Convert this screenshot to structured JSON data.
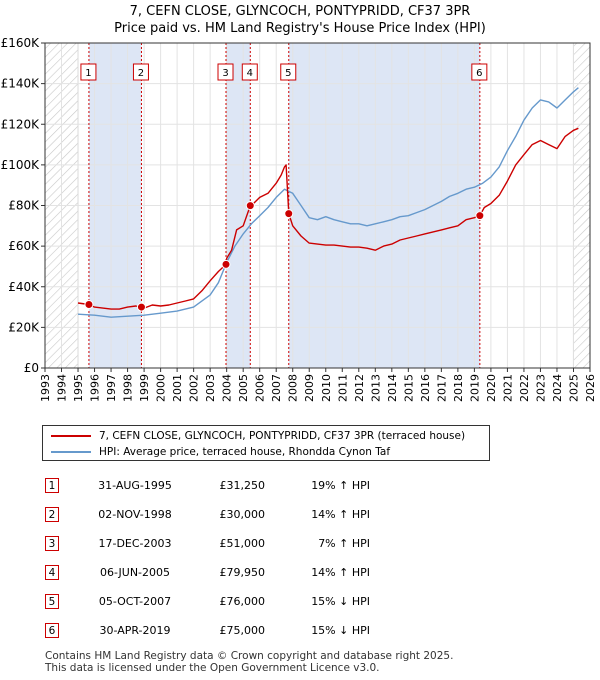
{
  "title_line1": "7, CEFN CLOSE, GLYNCOCH, PONTYPRIDD, CF37 3PR",
  "title_line2": "Price paid vs. HM Land Registry's House Price Index (HPI)",
  "legend": {
    "property": "7, CEFN CLOSE, GLYNCOCH, PONTYPRIDD, CF37 3PR (terraced house)",
    "hpi": "HPI: Average price, terraced house, Rhondda Cynon Taf"
  },
  "colors": {
    "property": "#cc0000",
    "hpi": "#6699cc",
    "shade": "#dde6f5",
    "hatch": "#bbbbbb"
  },
  "sales": [
    {
      "num": "1",
      "date": "31-AUG-1995",
      "price": "£31,250",
      "hpi": "19% ↑ HPI"
    },
    {
      "num": "2",
      "date": "02-NOV-1998",
      "price": "£30,000",
      "hpi": "14% ↑ HPI"
    },
    {
      "num": "3",
      "date": "17-DEC-2003",
      "price": "£51,000",
      "hpi": "7% ↑ HPI"
    },
    {
      "num": "4",
      "date": "06-JUN-2005",
      "price": "£79,950",
      "hpi": "14% ↑ HPI"
    },
    {
      "num": "5",
      "date": "05-OCT-2007",
      "price": "£76,000",
      "hpi": "15% ↓ HPI"
    },
    {
      "num": "6",
      "date": "30-APR-2019",
      "price": "£75,000",
      "hpi": "15% ↓ HPI"
    }
  ],
  "footer_line1": "Contains HM Land Registry data © Crown copyright and database right 2025.",
  "footer_line2": "This data is licensed under the Open Government Licence v3.0.",
  "chart_data": {
    "type": "line",
    "title": "7, CEFN CLOSE, GLYNCOCH, PONTYPRIDD, CF37 3PR - Price paid vs. HM Land Registry's House Price Index (HPI)",
    "xlabel": "",
    "ylabel": "",
    "xlim": [
      1993,
      2026
    ],
    "ylim": [
      0,
      160000
    ],
    "x_ticks": [
      1993,
      1994,
      1995,
      1996,
      1997,
      1998,
      1999,
      2000,
      2001,
      2002,
      2003,
      2004,
      2005,
      2006,
      2007,
      2008,
      2009,
      2010,
      2011,
      2012,
      2013,
      2014,
      2015,
      2016,
      2017,
      2018,
      2019,
      2020,
      2021,
      2022,
      2023,
      2024,
      2025,
      2026
    ],
    "y_ticks": [
      0,
      20000,
      40000,
      60000,
      80000,
      100000,
      120000,
      140000,
      160000
    ],
    "y_tick_labels": [
      "£0",
      "£20K",
      "£40K",
      "£60K",
      "£80K",
      "£100K",
      "£120K",
      "£140K",
      "£160K"
    ],
    "hatched_ranges": [
      [
        1993,
        1995.0
      ],
      [
        2025.0,
        2026
      ]
    ],
    "shaded_ranges": [
      [
        1995.66,
        1998.84
      ],
      [
        2003.96,
        2005.43
      ],
      [
        2007.76,
        2019.33
      ]
    ],
    "sale_points": [
      {
        "label": "1",
        "x": 1995.66,
        "y": 31250
      },
      {
        "label": "2",
        "x": 1998.84,
        "y": 30000
      },
      {
        "label": "3",
        "x": 2003.96,
        "y": 51000
      },
      {
        "label": "4",
        "x": 2005.43,
        "y": 79950
      },
      {
        "label": "5",
        "x": 2007.76,
        "y": 76000
      },
      {
        "label": "6",
        "x": 2019.33,
        "y": 75000
      }
    ],
    "series": [
      {
        "name": "7, CEFN CLOSE, GLYNCOCH, PONTYPRIDD, CF37 3PR (terraced house)",
        "x": [
          1995.0,
          1995.66,
          1996.0,
          1996.5,
          1997.0,
          1997.5,
          1998.0,
          1998.5,
          1998.84,
          1999.0,
          1999.5,
          2000.0,
          2000.5,
          2001.0,
          2001.5,
          2002.0,
          2002.5,
          2003.0,
          2003.5,
          2003.96,
          2004.0,
          2004.3,
          2004.6,
          2005.0,
          2005.43,
          2005.5,
          2006.0,
          2006.5,
          2007.0,
          2007.3,
          2007.5,
          2007.6,
          2007.76,
          2008.0,
          2008.5,
          2009.0,
          2009.5,
          2010.0,
          2010.5,
          2011.0,
          2011.5,
          2012.0,
          2012.5,
          2013.0,
          2013.5,
          2014.0,
          2014.5,
          2015.0,
          2015.5,
          2016.0,
          2016.5,
          2017.0,
          2017.5,
          2018.0,
          2018.5,
          2019.0,
          2019.33,
          2019.6,
          2020.0,
          2020.5,
          2021.0,
          2021.5,
          2022.0,
          2022.5,
          2023.0,
          2023.5,
          2024.0,
          2024.5,
          2025.0,
          2025.3
        ],
        "y": [
          32000,
          31250,
          30000,
          29500,
          29000,
          29000,
          30000,
          30500,
          30000,
          29500,
          31000,
          30500,
          31000,
          32000,
          33000,
          34000,
          38000,
          43000,
          47500,
          51000,
          54000,
          58000,
          68000,
          70000,
          79950,
          80000,
          84000,
          86000,
          91000,
          95000,
          99000,
          100000,
          76000,
          70000,
          65000,
          61500,
          61000,
          60500,
          60500,
          60000,
          59500,
          59500,
          59000,
          58000,
          60000,
          61000,
          63000,
          64000,
          65000,
          66000,
          67000,
          68000,
          69000,
          70000,
          73000,
          74000,
          75000,
          79000,
          81000,
          85000,
          92000,
          100000,
          105000,
          110000,
          112000,
          110000,
          108000,
          114000,
          117000,
          118000
        ]
      },
      {
        "name": "HPI: Average price, terraced house, Rhondda Cynon Taf",
        "x": [
          1995.0,
          1996.0,
          1997.0,
          1998.0,
          1999.0,
          2000.0,
          2001.0,
          2002.0,
          2003.0,
          2003.5,
          2004.0,
          2004.5,
          2005.0,
          2005.5,
          2006.0,
          2006.5,
          2007.0,
          2007.5,
          2008.0,
          2008.5,
          2009.0,
          2009.5,
          2010.0,
          2010.5,
          2011.0,
          2011.5,
          2012.0,
          2012.5,
          2013.0,
          2013.5,
          2014.0,
          2014.5,
          2015.0,
          2015.5,
          2016.0,
          2016.5,
          2017.0,
          2017.5,
          2018.0,
          2018.5,
          2019.0,
          2019.5,
          2020.0,
          2020.5,
          2021.0,
          2021.5,
          2022.0,
          2022.5,
          2023.0,
          2023.5,
          2024.0,
          2024.5,
          2025.0,
          2025.3
        ],
        "y": [
          26500,
          26000,
          25000,
          25500,
          26000,
          27000,
          28000,
          30000,
          36000,
          42000,
          52000,
          60000,
          66000,
          71000,
          75000,
          79000,
          84000,
          88000,
          86000,
          80000,
          74000,
          73000,
          74500,
          73000,
          72000,
          71000,
          71000,
          70000,
          71000,
          72000,
          73000,
          74500,
          75000,
          76500,
          78000,
          80000,
          82000,
          84500,
          86000,
          88000,
          89000,
          91000,
          94000,
          99000,
          107000,
          114000,
          122000,
          128000,
          132000,
          131000,
          128000,
          132000,
          136000,
          138000
        ]
      }
    ]
  }
}
